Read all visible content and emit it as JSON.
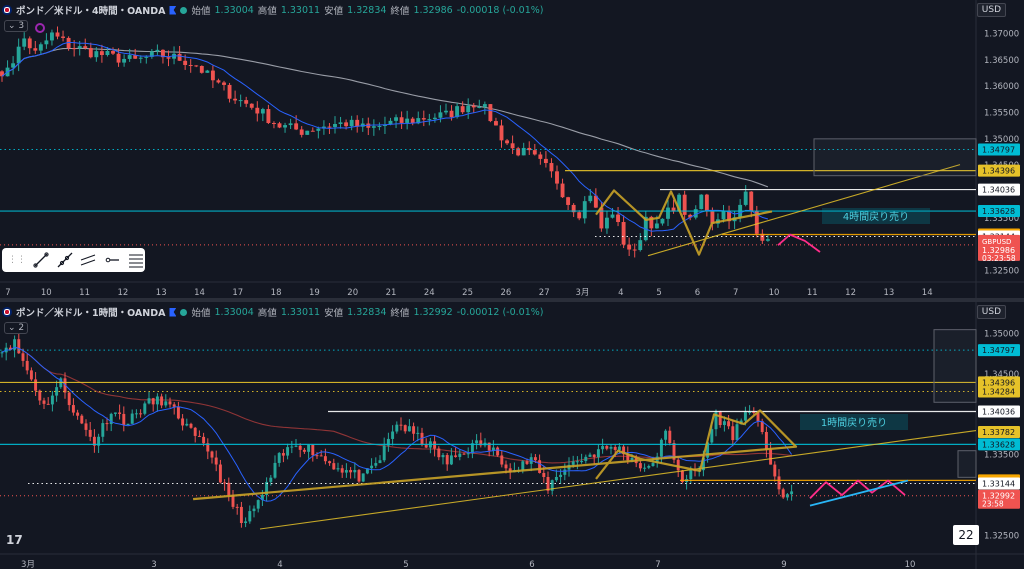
{
  "top_pane": {
    "collapse_label": "3",
    "header": {
      "symbol": "ポンド／米ドル・4時間・OANDA",
      "open_label": "始値",
      "open": "1.33004",
      "high_label": "高値",
      "high": "1.33011",
      "low_label": "安値",
      "low": "1.32834",
      "close_label": "終値",
      "close": "1.32986",
      "change": "-0.00018 (-0.01%)"
    },
    "currency": "USD",
    "annotation": "4時間戻り売り"
  },
  "bottom_pane": {
    "collapse_label": "2",
    "header": {
      "symbol": "ポンド／米ドル・1時間・OANDA",
      "open_label": "始値",
      "open": "1.33004",
      "high_label": "高値",
      "high": "1.33011",
      "low_label": "安値",
      "low": "1.32834",
      "close_label": "終値",
      "close": "1.32992",
      "change": "-0.00012 (-0.01%)"
    },
    "currency": "USD",
    "annotation": "1時間戻り売り",
    "badge": "22"
  },
  "tv_logo": "17",
  "colors": {
    "bg": "#131722",
    "up": "#26a69a",
    "down": "#ef5350",
    "ma_fast": "#2962ff",
    "ma_slow_top": "#b2b5be",
    "ma_slow_bottom": "#a63a3a",
    "yellow": "#e6c229",
    "cyan": "#00bcd4",
    "orange_line": "#f7a600",
    "white_line": "#ffffff",
    "pattern": "#c9a227",
    "projection": "#ff2d8a",
    "trend_blue": "#29b6f6"
  },
  "chart_data": [
    {
      "type": "candlestick",
      "title": "ポンド／米ドル・4時間・OANDA",
      "x_ticks": [
        "7",
        "10",
        "11",
        "12",
        "13",
        "14",
        "17",
        "18",
        "19",
        "20",
        "21",
        "24",
        "25",
        "26",
        "27",
        "3月",
        "4",
        "5",
        "6",
        "7",
        "10",
        "11",
        "12",
        "13",
        "14"
      ],
      "y_ticks": [
        "1.37000",
        "1.36500",
        "1.36000",
        "1.35500",
        "1.35000",
        "1.34500",
        "1.34000",
        "1.33500",
        "1.33000",
        "1.32500"
      ],
      "ylim": [
        1.3228,
        1.3722
      ],
      "levels": [
        {
          "label": "1.34797",
          "value": 1.34797,
          "color": "#00bcd4",
          "style": "dotted"
        },
        {
          "label": "1.34396",
          "value": 1.34396,
          "color": "#e6c229",
          "style": "solid"
        },
        {
          "label": "1.34036",
          "value": 1.34036,
          "color": "#ffffff",
          "style": "solid"
        },
        {
          "label": "1.33628",
          "value": 1.33628,
          "color": "#00bcd4",
          "style": "solid"
        },
        {
          "label": "1.33182",
          "value": 1.33182,
          "color": "#f7a600",
          "style": "solid"
        },
        {
          "label": "1.33144",
          "value": 1.33144,
          "color": "#ffffff",
          "style": "dotted"
        },
        {
          "label": "GBPUSD",
          "value": 1.32986,
          "color": "#ef5350",
          "style": "last"
        }
      ],
      "last_price": "1.32986",
      "countdown": "03:23:58",
      "anchors": [
        [
          0,
          1.363
        ],
        [
          2,
          1.365
        ],
        [
          4,
          1.369
        ],
        [
          6,
          1.3662
        ],
        [
          9,
          1.3698
        ],
        [
          12,
          1.3678
        ],
        [
          16,
          1.3665
        ],
        [
          20,
          1.3655
        ],
        [
          24,
          1.3648
        ],
        [
          28,
          1.366
        ],
        [
          32,
          1.3652
        ],
        [
          35,
          1.364
        ],
        [
          38,
          1.361
        ],
        [
          42,
          1.3578
        ],
        [
          46,
          1.3555
        ],
        [
          50,
          1.3525
        ],
        [
          54,
          1.3515
        ],
        [
          58,
          1.3525
        ],
        [
          62,
          1.353
        ],
        [
          66,
          1.3518
        ],
        [
          70,
          1.353
        ],
        [
          74,
          1.3535
        ],
        [
          76,
          1.354
        ],
        [
          80,
          1.3545
        ],
        [
          84,
          1.3565
        ],
        [
          86,
          1.357
        ],
        [
          88,
          1.354
        ],
        [
          90,
          1.3505
        ],
        [
          92,
          1.348
        ],
        [
          95,
          1.347
        ],
        [
          98,
          1.3445
        ],
        [
          100,
          1.342
        ],
        [
          102,
          1.338
        ],
        [
          104,
          1.336
        ],
        [
          106,
          1.3398
        ],
        [
          108,
          1.333
        ],
        [
          110,
          1.3362
        ],
        [
          112,
          1.3305
        ],
        [
          114,
          1.328
        ],
        [
          116,
          1.3352
        ],
        [
          118,
          1.333
        ],
        [
          120,
          1.336
        ],
        [
          122,
          1.3385
        ],
        [
          124,
          1.334
        ],
        [
          126,
          1.339
        ],
        [
          128,
          1.3345
        ],
        [
          130,
          1.3362
        ],
        [
          132,
          1.3345
        ],
        [
          134,
          1.3395
        ],
        [
          136,
          1.333
        ],
        [
          138,
          1.33
        ]
      ],
      "pattern": [
        [
          1.3356,
          1.3402
        ],
        [
          1.3346,
          1.335
        ],
        [
          1.34,
          1.328
        ],
        [
          1.334,
          1.3362
        ]
      ],
      "projection": [
        1.3298,
        1.3318,
        1.3306,
        1.3285
      ],
      "trendline": [
        [
          1.3278
        ],
        [
          1.3451
        ]
      ]
    },
    {
      "type": "candlestick",
      "title": "ポンド／米ドル・1時間・OANDA",
      "x_ticks": [
        "3月",
        "3",
        "4",
        "5",
        "6",
        "7",
        "9",
        "10"
      ],
      "y_ticks": [
        "1.35000",
        "1.34500",
        "1.34000",
        "1.33500",
        "1.33000",
        "1.32500"
      ],
      "ylim": [
        1.3227,
        1.3512
      ],
      "levels": [
        {
          "label": "1.34797",
          "value": 1.34797,
          "color": "#00bcd4",
          "style": "dotted"
        },
        {
          "label": "1.34396",
          "value": 1.34396,
          "color": "#e6c229",
          "style": "solid"
        },
        {
          "label": "1.34284",
          "value": 1.34284,
          "color": "#e6c229",
          "style": "dotted"
        },
        {
          "label": "1.34036",
          "value": 1.34036,
          "color": "#ffffff",
          "style": "solid"
        },
        {
          "label": "1.33782",
          "value": 1.33782,
          "color": "#e6c229",
          "style": "trend"
        },
        {
          "label": "1.33628",
          "value": 1.33628,
          "color": "#00bcd4",
          "style": "solid"
        },
        {
          "label": "1.33182",
          "value": 1.33182,
          "color": "#f7a600",
          "style": "solid"
        },
        {
          "label": "1.33144",
          "value": 1.33144,
          "color": "#ffffff",
          "style": "dotted"
        },
        {
          "label": "1.32992",
          "value": 1.32992,
          "color": "#ef5350",
          "style": "last"
        }
      ],
      "last_price": "1.32992",
      "countdown": "23:58",
      "anchors": [
        [
          0,
          1.3484
        ],
        [
          3,
          1.3488
        ],
        [
          6,
          1.3455
        ],
        [
          10,
          1.341
        ],
        [
          14,
          1.344
        ],
        [
          18,
          1.3395
        ],
        [
          22,
          1.3365
        ],
        [
          26,
          1.3405
        ],
        [
          30,
          1.339
        ],
        [
          34,
          1.3412
        ],
        [
          38,
          1.3418
        ],
        [
          42,
          1.3398
        ],
        [
          46,
          1.337
        ],
        [
          50,
          1.335
        ],
        [
          54,
          1.3295
        ],
        [
          58,
          1.3265
        ],
        [
          62,
          1.33
        ],
        [
          66,
          1.3345
        ],
        [
          70,
          1.3365
        ],
        [
          74,
          1.3355
        ],
        [
          78,
          1.334
        ],
        [
          82,
          1.333
        ],
        [
          86,
          1.332
        ],
        [
          90,
          1.3345
        ],
        [
          94,
          1.339
        ],
        [
          98,
          1.3375
        ],
        [
          102,
          1.336
        ],
        [
          106,
          1.334
        ],
        [
          110,
          1.3355
        ],
        [
          114,
          1.3365
        ],
        [
          118,
          1.335
        ],
        [
          122,
          1.333
        ],
        [
          126,
          1.3345
        ],
        [
          130,
          1.331
        ],
        [
          134,
          1.3335
        ],
        [
          138,
          1.3345
        ],
        [
          142,
          1.3355
        ],
        [
          146,
          1.336
        ],
        [
          150,
          1.3345
        ],
        [
          154,
          1.333
        ],
        [
          158,
          1.3375
        ],
        [
          162,
          1.332
        ],
        [
          166,
          1.333
        ],
        [
          170,
          1.34
        ],
        [
          174,
          1.3375
        ],
        [
          178,
          1.341
        ],
        [
          182,
          1.336
        ],
        [
          186,
          1.329
        ],
        [
          188,
          1.3305
        ]
      ],
      "pattern": [
        [
          1.332,
          1.3355
        ],
        [
          1.3345,
          1.333
        ],
        [
          1.34,
          1.3388
        ],
        [
          1.3405,
          1.336
        ],
        [
          1.33,
          1.3295
        ]
      ],
      "projection": [
        1.3296,
        1.3316,
        1.33,
        1.3318,
        1.3303,
        1.3318,
        1.33
      ],
      "trendline": [
        [
          1.3258
        ],
        [
          1.338
        ]
      ],
      "blue_trend": [
        [
          1.3287
        ],
        [
          1.3318
        ]
      ]
    }
  ]
}
